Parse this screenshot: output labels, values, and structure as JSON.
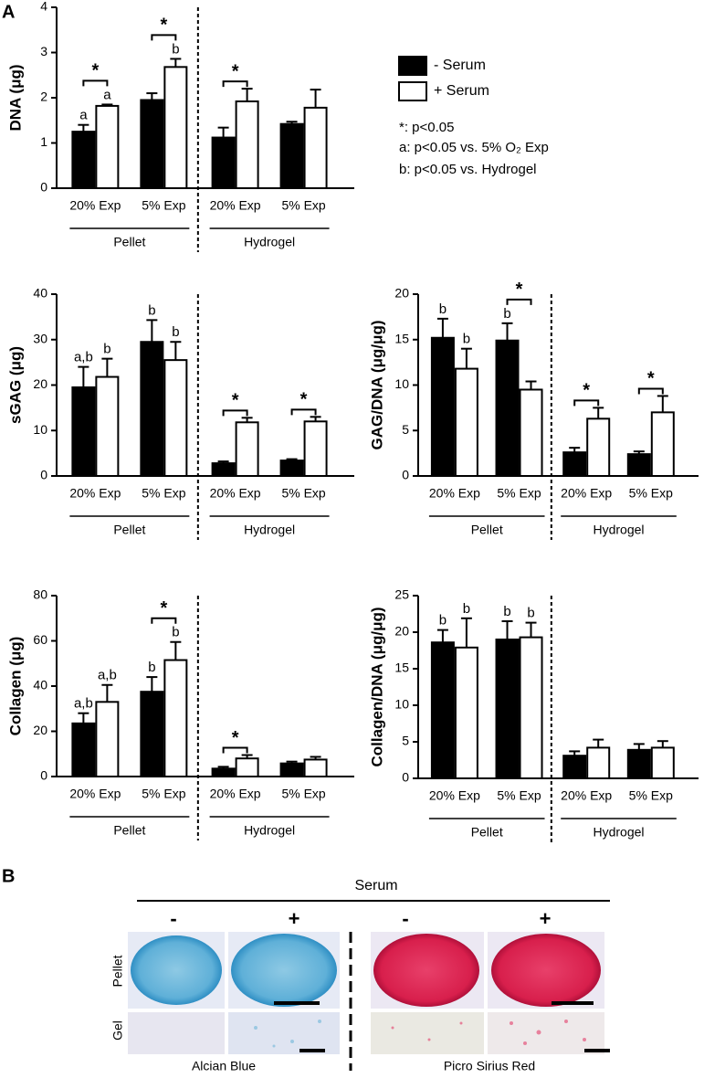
{
  "panels": [
    "A",
    "B"
  ],
  "notes": [
    "*: p<0.05",
    "a: p<0.05 vs. 5% O₂ Exp",
    "b: p<0.05 vs. Hydrogel"
  ],
  "chart_data": [
    {
      "type": "bar",
      "ylabel": "DNA (μg)",
      "categories": [
        "20% Exp",
        "5% Exp",
        "20% Exp",
        "5% Exp"
      ],
      "groups": [
        "Pellet",
        "Hydrogel"
      ],
      "ylim": [
        0,
        4
      ],
      "yticks": [
        0,
        1,
        2,
        3,
        4
      ],
      "series": [
        {
          "name": "- Serum",
          "color": "#000000",
          "values": [
            1.25,
            1.95,
            1.12,
            1.42
          ],
          "errors": [
            0.15,
            0.15,
            0.22,
            0.05
          ],
          "annotations": [
            "a",
            null,
            null,
            null
          ]
        },
        {
          "name": "+ Serum",
          "color": "#ffffff",
          "values": [
            1.82,
            2.68,
            1.92,
            1.78
          ],
          "errors": [
            0.03,
            0.18,
            0.28,
            0.4
          ],
          "annotations": [
            "a",
            "b",
            null,
            null
          ]
        }
      ],
      "significance": [
        "*",
        "*",
        "*",
        null
      ]
    },
    {
      "type": "bar",
      "ylabel": "sGAG (μg)",
      "categories": [
        "20% Exp",
        "5% Exp",
        "20% Exp",
        "5% Exp"
      ],
      "groups": [
        "Pellet",
        "Hydrogel"
      ],
      "ylim": [
        0,
        40
      ],
      "yticks": [
        0,
        10,
        20,
        30,
        40
      ],
      "series": [
        {
          "name": "- Serum",
          "color": "#000000",
          "values": [
            19.5,
            29.5,
            2.8,
            3.4
          ],
          "errors": [
            4.5,
            4.8,
            0.4,
            0.3
          ],
          "annotations": [
            "a,b",
            "b",
            null,
            null
          ]
        },
        {
          "name": "+ Serum",
          "color": "#ffffff",
          "values": [
            21.8,
            25.5,
            11.8,
            12.0
          ],
          "errors": [
            4,
            4,
            1,
            1
          ],
          "annotations": [
            "b",
            "b",
            null,
            null
          ]
        }
      ],
      "significance": [
        null,
        null,
        "*",
        "*"
      ]
    },
    {
      "type": "bar",
      "ylabel": "GAG/DNA (μg/μg)",
      "categories": [
        "20% Exp",
        "5% Exp",
        "20% Exp",
        "5% Exp"
      ],
      "groups": [
        "Pellet",
        "Hydrogel"
      ],
      "ylim": [
        0,
        20
      ],
      "yticks": [
        0,
        5,
        10,
        15,
        20
      ],
      "series": [
        {
          "name": "- Serum",
          "color": "#000000",
          "values": [
            15.2,
            14.9,
            2.6,
            2.4
          ],
          "errors": [
            2.1,
            1.9,
            0.5,
            0.3
          ],
          "annotations": [
            "b",
            "b",
            null,
            null
          ]
        },
        {
          "name": "+ Serum",
          "color": "#ffffff",
          "values": [
            11.8,
            9.5,
            6.3,
            7.0
          ],
          "errors": [
            2.2,
            0.9,
            1.2,
            1.8
          ],
          "annotations": [
            "b",
            null,
            null,
            null
          ]
        }
      ],
      "significance": [
        null,
        "*",
        "*",
        "*"
      ]
    },
    {
      "type": "bar",
      "ylabel": "Collagen (μg)",
      "categories": [
        "20% Exp",
        "5% Exp",
        "20% Exp",
        "5% Exp"
      ],
      "groups": [
        "Pellet",
        "Hydrogel"
      ],
      "ylim": [
        0,
        80
      ],
      "yticks": [
        0,
        20,
        40,
        60,
        80
      ],
      "series": [
        {
          "name": "- Serum",
          "color": "#000000",
          "values": [
            23.5,
            37.5,
            3.5,
            5.8
          ],
          "errors": [
            4.5,
            6.5,
            0.8,
            0.8
          ],
          "annotations": [
            "a,b",
            "b",
            null,
            null
          ]
        },
        {
          "name": "+ Serum",
          "color": "#ffffff",
          "values": [
            33,
            51.5,
            8,
            7.5
          ],
          "errors": [
            7.5,
            8,
            1.5,
            1.2
          ],
          "annotations": [
            "a,b",
            "b",
            null,
            null
          ]
        }
      ],
      "significance": [
        null,
        "*",
        "*",
        null
      ]
    },
    {
      "type": "bar",
      "ylabel": "Collagen/DNA (μg/μg)",
      "categories": [
        "20% Exp",
        "5% Exp",
        "20% Exp",
        "5% Exp"
      ],
      "groups": [
        "Pellet",
        "Hydrogel"
      ],
      "ylim": [
        0,
        25
      ],
      "yticks": [
        0,
        5,
        10,
        15,
        20,
        25
      ],
      "series": [
        {
          "name": "- Serum",
          "color": "#000000",
          "values": [
            18.6,
            19.0,
            3.1,
            3.9
          ],
          "errors": [
            1.7,
            2.5,
            0.6,
            0.8
          ],
          "annotations": [
            "b",
            "b",
            null,
            null
          ]
        },
        {
          "name": "+ Serum",
          "color": "#ffffff",
          "values": [
            17.9,
            19.3,
            4.2,
            4.2
          ],
          "errors": [
            4,
            2,
            1.1,
            0.9
          ],
          "annotations": [
            "b",
            "b",
            null,
            null
          ]
        }
      ],
      "significance": [
        null,
        null,
        null,
        null
      ]
    }
  ],
  "histology": {
    "title": "Serum",
    "signs": [
      "-",
      "+",
      "-",
      "+"
    ],
    "rows": [
      "Pellet",
      "Gel"
    ],
    "stains": [
      "Alcian Blue",
      "Picro Sirius Red"
    ]
  }
}
